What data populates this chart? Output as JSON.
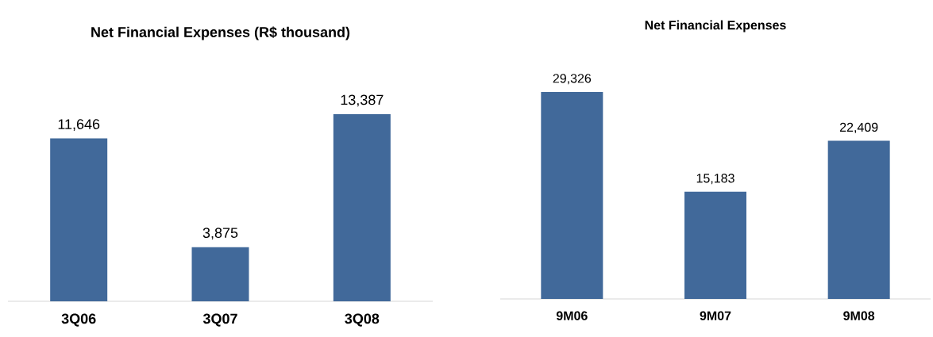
{
  "chart_data": [
    {
      "type": "bar",
      "title": "Net Financial Expenses (R$ thousand)",
      "categories": [
        "3Q06",
        "3Q07",
        "3Q08"
      ],
      "values": [
        11646,
        3875,
        13387
      ],
      "value_labels": [
        "11,646",
        "3,875",
        "13,387"
      ],
      "color": "#41699a"
    },
    {
      "type": "bar",
      "title": "Net Financial Expenses",
      "categories": [
        "9M06",
        "9M07",
        "9M08"
      ],
      "values": [
        29326,
        15183,
        22409
      ],
      "value_labels": [
        "29,326",
        "15,183",
        "22,409"
      ],
      "color": "#41699a"
    }
  ]
}
